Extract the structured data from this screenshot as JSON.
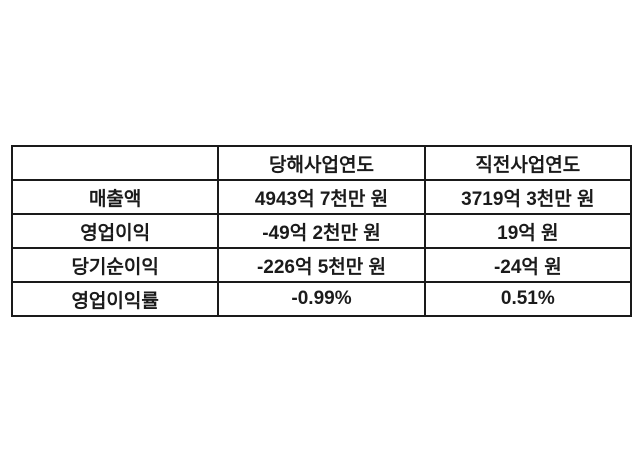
{
  "colors": {
    "background": "#ffffff",
    "border": "#1a1a1a",
    "text": "#1b1b1b"
  },
  "chart_data": {
    "type": "table",
    "title": "",
    "columns": [
      "",
      "당해사업연도",
      "직전사업연도"
    ],
    "rows": [
      [
        "매출액",
        "4943억 7천만 원",
        "3719억 3천만 원"
      ],
      [
        "영업이익",
        "-49억 2천만 원",
        "19억 원"
      ],
      [
        "당기순이익",
        "-226억 5천만 원",
        "-24억 원"
      ],
      [
        "영업이익률",
        "-0.99%",
        "0.51%"
      ]
    ]
  }
}
